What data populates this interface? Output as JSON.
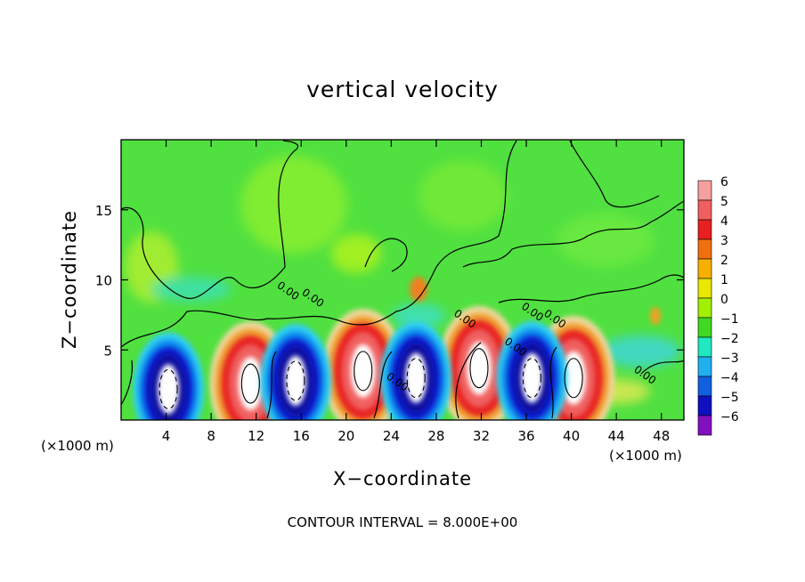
{
  "chart_data": {
    "type": "heatmap",
    "title": "vertical velocity",
    "xlabel": "X−coordinate",
    "ylabel": "Z−coordinate",
    "x_unit_left": "(×1000 m)",
    "x_unit_right": "(×1000 m)",
    "xlim": [
      0,
      50
    ],
    "ylim": [
      0,
      20
    ],
    "x_ticks": [
      4,
      8,
      12,
      16,
      20,
      24,
      28,
      32,
      36,
      40,
      44,
      48
    ],
    "y_ticks": [
      5,
      10,
      15
    ],
    "colorbar": {
      "levels": [
        6,
        5,
        4,
        3,
        2,
        1,
        0,
        -1,
        -2,
        -3,
        -4,
        -5,
        -6
      ],
      "level_labels": [
        "6",
        "5",
        "4",
        "3",
        "2",
        "1",
        "0",
        "−1",
        "−2",
        "−3",
        "−4",
        "−5",
        "−6"
      ],
      "colors": [
        "#f6a0a0",
        "#f06060",
        "#e82020",
        "#f07010",
        "#f8b000",
        "#e8e800",
        "#a0f000",
        "#40d820",
        "#20e8c0",
        "#20b0f0",
        "#1060e0",
        "#1010c0",
        "#8010c0"
      ]
    },
    "contour_labels": [
      "0.00",
      "0.00",
      "0.00",
      "0.00",
      "0.00",
      "0.00",
      "0.00",
      "0.00"
    ],
    "footer": "CONTOUR INTERVAL = 8.000E+00",
    "updraft_cores": [
      {
        "x": 11.5,
        "z": 2.6,
        "w": 6
      },
      {
        "x": 21.5,
        "z": 3.5,
        "w": 6
      },
      {
        "x": 31.8,
        "z": 3.7,
        "w": 6
      },
      {
        "x": 40.2,
        "z": 3.0,
        "w": 6
      }
    ],
    "downdraft_cores": [
      {
        "x": 4.2,
        "z": 2.2,
        "w": -6
      },
      {
        "x": 15.5,
        "z": 2.8,
        "w": -6
      },
      {
        "x": 26.2,
        "z": 3.0,
        "w": -6
      },
      {
        "x": 36.5,
        "z": 3.0,
        "w": -6
      }
    ]
  }
}
